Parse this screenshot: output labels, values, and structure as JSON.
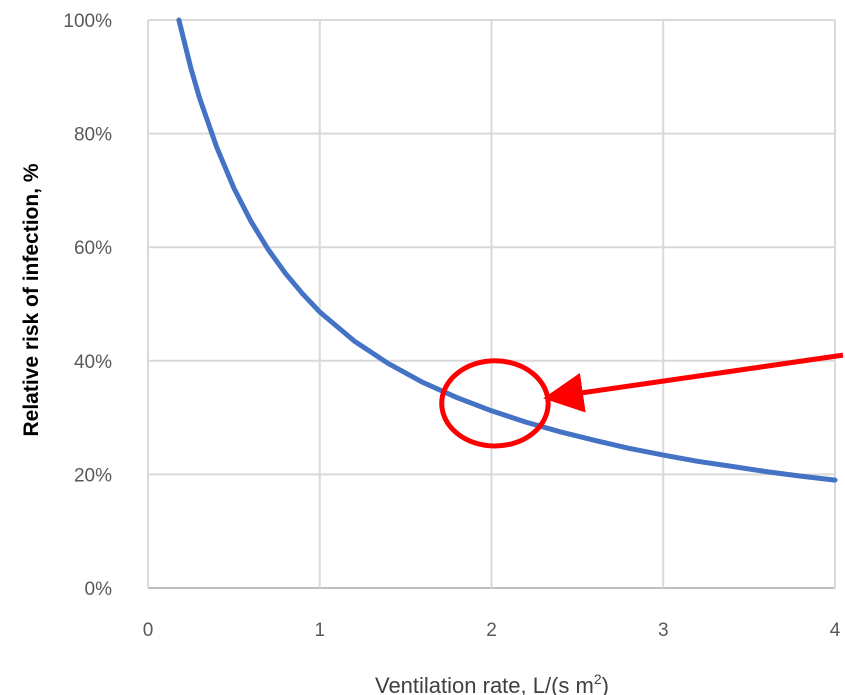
{
  "chart_data": {
    "type": "line",
    "title": "",
    "xlabel": "Ventilation rate, L/(s m",
    "xlabel_superscript": "2",
    "xlabel_suffix": ")",
    "ylabel": "Relative risk of infection, %",
    "xlim": [
      0,
      4
    ],
    "ylim": [
      0,
      100
    ],
    "x_ticks": [
      0,
      1,
      2,
      3,
      4
    ],
    "x_tick_labels": [
      "0",
      "1",
      "2",
      "3",
      "4"
    ],
    "y_ticks": [
      0,
      20,
      40,
      60,
      80,
      100
    ],
    "y_tick_labels": [
      "0%",
      "20%",
      "40%",
      "60%",
      "80%",
      "100%"
    ],
    "grid": true,
    "legend": "none",
    "series": [
      {
        "color": "#4472C4",
        "x": [
          0.18,
          0.25,
          0.3,
          0.4,
          0.5,
          0.6,
          0.7,
          0.8,
          0.9,
          1.0,
          1.2,
          1.4,
          1.6,
          1.8,
          2.0,
          2.2,
          2.4,
          2.6,
          2.8,
          3.0,
          3.2,
          3.4,
          3.6,
          3.8,
          4.0
        ],
        "y": [
          100.0,
          91.5,
          86.3,
          77.6,
          70.4,
          64.5,
          59.6,
          55.4,
          51.8,
          48.6,
          43.5,
          39.5,
          36.2,
          33.5,
          31.2,
          29.2,
          27.5,
          26.0,
          24.6,
          23.4,
          22.3,
          21.4,
          20.5,
          19.7,
          19.0
        ]
      }
    ],
    "annotations": [
      {
        "type": "ellipse",
        "color": "#FF0000",
        "cx": 2.02,
        "cy": 32.5,
        "rx": 0.31,
        "ry": 7.5
      },
      {
        "type": "arrow",
        "color": "#FF0000",
        "from": [
          4.05,
          41.0
        ],
        "to": [
          2.33,
          33.5
        ]
      }
    ]
  }
}
